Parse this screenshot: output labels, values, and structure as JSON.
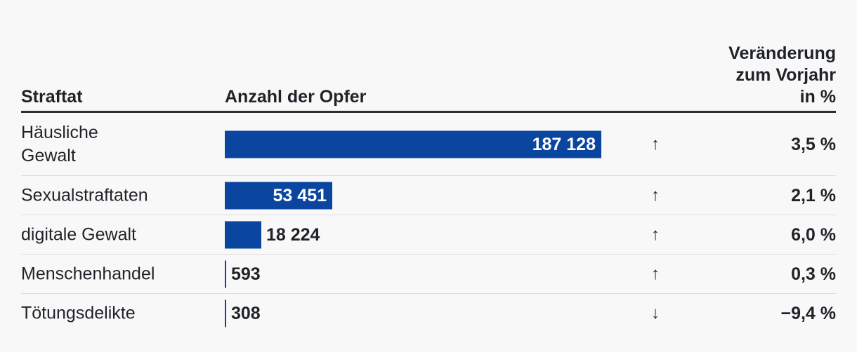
{
  "header": {
    "straftat": "Straftat",
    "anzahl": "Anzahl der Opfer",
    "change": "Veränderung\nzum Vorjahr\nin %"
  },
  "colors": {
    "bar": "#0a46a0",
    "text": "#1f2328",
    "background": "#f8f8f8"
  },
  "chart_data": {
    "type": "bar",
    "title": "",
    "xlabel": "Anzahl der Opfer",
    "ylabel": "Straftat",
    "categories": [
      "Häusliche Gewalt",
      "Sexualstraftaten",
      "digitale Gewalt",
      "Menschenhandel",
      "Tötungsdelikte"
    ],
    "values": [
      187128,
      53451,
      18224,
      593,
      308
    ],
    "ylim": [
      0,
      187128
    ],
    "rows": [
      {
        "label": "Häusliche\nGewalt",
        "value": 187128,
        "value_label": "187 128",
        "direction": "up",
        "arrow": "↑",
        "change": "3,5 %"
      },
      {
        "label": "Sexualstraftaten",
        "value": 53451,
        "value_label": "53 451",
        "direction": "up",
        "arrow": "↑",
        "change": "2,1 %"
      },
      {
        "label": "digitale Gewalt",
        "value": 18224,
        "value_label": "18 224",
        "direction": "up",
        "arrow": "↑",
        "change": "6,0 %"
      },
      {
        "label": "Menschenhandel",
        "value": 593,
        "value_label": "593",
        "direction": "up",
        "arrow": "↑",
        "change": "0,3 %"
      },
      {
        "label": "Tötungsdelikte",
        "value": 308,
        "value_label": "308",
        "direction": "down",
        "arrow": "↓",
        "change": "−9,4 %"
      }
    ]
  }
}
